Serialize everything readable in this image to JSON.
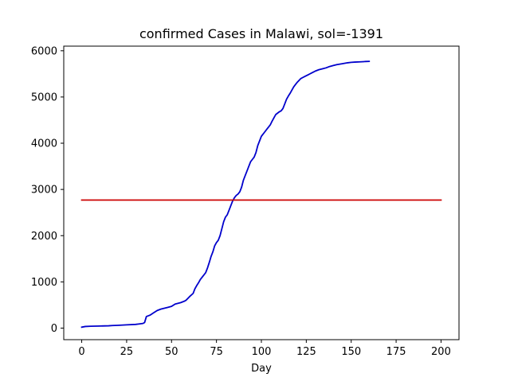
{
  "chart_data": {
    "type": "line",
    "title": "confirmed Cases in Malawi, sol=-1391",
    "xlabel": "Day",
    "ylabel": "",
    "xlim": [
      -10,
      210
    ],
    "ylim": [
      -250,
      6100
    ],
    "xticks": [
      0,
      25,
      50,
      75,
      100,
      125,
      150,
      175,
      200
    ],
    "yticks": [
      0,
      1000,
      2000,
      3000,
      4000,
      5000,
      6000
    ],
    "grid": false,
    "series": [
      {
        "color": "#0000cc",
        "x": [
          0,
          2,
          5,
          10,
          15,
          17,
          20,
          25,
          30,
          32,
          34,
          35,
          36,
          38,
          40,
          42,
          44,
          46,
          48,
          50,
          52,
          55,
          57,
          58,
          60,
          62,
          63,
          64,
          65,
          66,
          67,
          68,
          69,
          70,
          71,
          72,
          73,
          74,
          75,
          76,
          77,
          78,
          79,
          80,
          81,
          82,
          83,
          84,
          85,
          86,
          87,
          88,
          89,
          90,
          91,
          92,
          93,
          94,
          95,
          96,
          97,
          98,
          99,
          100,
          101,
          102,
          103,
          104,
          105,
          106,
          107,
          108,
          109,
          110,
          111,
          112,
          113,
          114,
          115,
          116,
          117,
          118,
          119,
          120,
          121,
          122,
          123,
          124,
          125,
          126,
          127,
          128,
          129,
          130,
          132,
          134,
          136,
          138,
          140,
          142,
          145,
          148,
          150,
          152,
          155,
          157,
          158,
          160
        ],
        "y": [
          20,
          35,
          40,
          45,
          50,
          55,
          60,
          70,
          80,
          90,
          100,
          120,
          250,
          280,
          330,
          380,
          410,
          430,
          450,
          470,
          520,
          550,
          580,
          600,
          680,
          750,
          850,
          920,
          980,
          1050,
          1100,
          1150,
          1200,
          1300,
          1420,
          1550,
          1650,
          1780,
          1850,
          1900,
          2000,
          2150,
          2300,
          2400,
          2450,
          2550,
          2650,
          2750,
          2820,
          2870,
          2900,
          2950,
          3050,
          3200,
          3300,
          3400,
          3500,
          3600,
          3650,
          3700,
          3800,
          3950,
          4050,
          4150,
          4200,
          4250,
          4300,
          4350,
          4400,
          4480,
          4550,
          4620,
          4650,
          4680,
          4700,
          4750,
          4850,
          4950,
          5020,
          5080,
          5150,
          5220,
          5270,
          5320,
          5360,
          5400,
          5420,
          5440,
          5460,
          5480,
          5500,
          5520,
          5540,
          5560,
          5590,
          5610,
          5630,
          5660,
          5680,
          5700,
          5720,
          5740,
          5750,
          5755,
          5760,
          5765,
          5768,
          5770
        ]
      },
      {
        "color": "#cc0000",
        "x": [
          0,
          200
        ],
        "y": [
          2770,
          2770
        ]
      }
    ]
  }
}
